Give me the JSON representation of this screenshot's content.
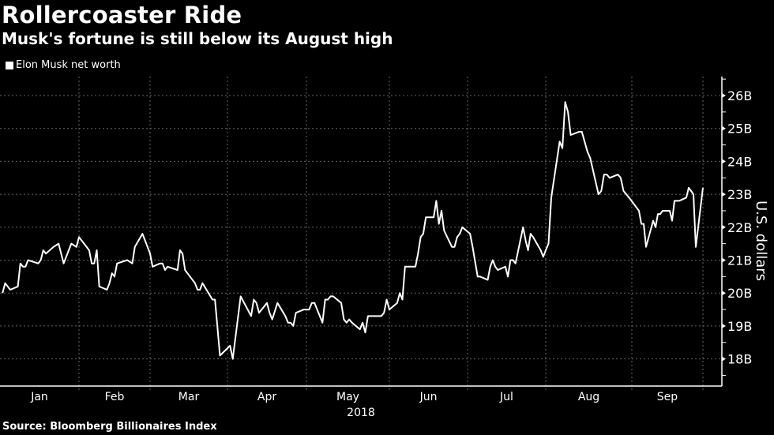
{
  "title": "Rollercoaster Ride",
  "subtitle": "Musk's fortune is still below its August high",
  "source": "Source: Bloomberg Billionaires Index",
  "chart_data": {
    "type": "line",
    "title": "Rollercoaster Ride",
    "subtitle": "Musk's fortune is still below its August high",
    "legend": {
      "position": "top-left",
      "entries": [
        "Elon Musk net worth"
      ]
    },
    "xlabel": "2018",
    "ylabel": "U.S. dollars",
    "y_axis_side": "right",
    "ylim": [
      17.2,
      26.6
    ],
    "y_ticks": [
      18,
      19,
      20,
      21,
      22,
      23,
      24,
      25,
      26
    ],
    "y_tick_labels": [
      "18B",
      "19B",
      "20B",
      "21B",
      "22B",
      "23B",
      "24B",
      "25B",
      "26B"
    ],
    "x_tick_labels": [
      "Jan",
      "Feb",
      "Mar",
      "Apr",
      "May",
      "Jun",
      "Jul",
      "Aug",
      "Sep"
    ],
    "grid": true,
    "colors": {
      "background": "#000000",
      "line": "#ffffff",
      "grid": "#666666"
    },
    "series": [
      {
        "name": "Elon Musk net worth",
        "unit": "billion USD",
        "points": [
          [
            "2018-01-02",
            20.0
          ],
          [
            "2018-01-03",
            20.3
          ],
          [
            "2018-01-05",
            20.1
          ],
          [
            "2018-01-08",
            20.2
          ],
          [
            "2018-01-09",
            20.9
          ],
          [
            "2018-01-10",
            20.8
          ],
          [
            "2018-01-11",
            20.8
          ],
          [
            "2018-01-12",
            21.0
          ],
          [
            "2018-01-16",
            20.9
          ],
          [
            "2018-01-17",
            21.0
          ],
          [
            "2018-01-18",
            21.3
          ],
          [
            "2018-01-19",
            21.2
          ],
          [
            "2018-01-22",
            21.4
          ],
          [
            "2018-01-24",
            21.5
          ],
          [
            "2018-01-26",
            20.9
          ],
          [
            "2018-01-29",
            21.5
          ],
          [
            "2018-01-31",
            21.4
          ],
          [
            "2018-02-01",
            21.7
          ],
          [
            "2018-02-05",
            21.3
          ],
          [
            "2018-02-06",
            20.9
          ],
          [
            "2018-02-07",
            20.9
          ],
          [
            "2018-02-08",
            21.3
          ],
          [
            "2018-02-09",
            20.2
          ],
          [
            "2018-02-12",
            20.1
          ],
          [
            "2018-02-13",
            20.3
          ],
          [
            "2018-02-14",
            20.6
          ],
          [
            "2018-02-15",
            20.5
          ],
          [
            "2018-02-16",
            20.9
          ],
          [
            "2018-02-20",
            21.0
          ],
          [
            "2018-02-22",
            20.9
          ],
          [
            "2018-02-23",
            21.4
          ],
          [
            "2018-02-26",
            21.8
          ],
          [
            "2018-03-01",
            21.2
          ],
          [
            "2018-03-02",
            20.8
          ],
          [
            "2018-03-05",
            20.9
          ],
          [
            "2018-03-06",
            20.9
          ],
          [
            "2018-03-07",
            20.7
          ],
          [
            "2018-03-08",
            20.8
          ],
          [
            "2018-03-12",
            20.7
          ],
          [
            "2018-03-13",
            21.3
          ],
          [
            "2018-03-14",
            21.2
          ],
          [
            "2018-03-15",
            20.7
          ],
          [
            "2018-03-16",
            20.6
          ],
          [
            "2018-03-19",
            20.3
          ],
          [
            "2018-03-20",
            20.1
          ],
          [
            "2018-03-21",
            20.1
          ],
          [
            "2018-03-22",
            20.3
          ],
          [
            "2018-03-26",
            19.8
          ],
          [
            "2018-03-27",
            19.8
          ],
          [
            "2018-03-29",
            18.1
          ],
          [
            "2018-04-02",
            18.4
          ],
          [
            "2018-04-03",
            18.0
          ],
          [
            "2018-04-06",
            19.9
          ],
          [
            "2018-04-10",
            19.3
          ],
          [
            "2018-04-11",
            19.8
          ],
          [
            "2018-04-12",
            19.7
          ],
          [
            "2018-04-13",
            19.4
          ],
          [
            "2018-04-16",
            19.7
          ],
          [
            "2018-04-17",
            19.4
          ],
          [
            "2018-04-18",
            19.2
          ],
          [
            "2018-04-20",
            19.7
          ],
          [
            "2018-04-23",
            19.3
          ],
          [
            "2018-04-24",
            19.1
          ],
          [
            "2018-04-25",
            19.1
          ],
          [
            "2018-04-26",
            19.0
          ],
          [
            "2018-04-27",
            19.4
          ],
          [
            "2018-04-30",
            19.5
          ],
          [
            "2018-05-02",
            19.5
          ],
          [
            "2018-05-03",
            19.7
          ],
          [
            "2018-05-04",
            19.7
          ],
          [
            "2018-05-07",
            19.1
          ],
          [
            "2018-05-08",
            19.8
          ],
          [
            "2018-05-09",
            19.8
          ],
          [
            "2018-05-10",
            19.9
          ],
          [
            "2018-05-11",
            19.9
          ],
          [
            "2018-05-14",
            19.7
          ],
          [
            "2018-05-15",
            19.2
          ],
          [
            "2018-05-16",
            19.1
          ],
          [
            "2018-05-17",
            19.2
          ],
          [
            "2018-05-18",
            19.1
          ],
          [
            "2018-05-21",
            18.9
          ],
          [
            "2018-05-22",
            19.1
          ],
          [
            "2018-05-23",
            18.8
          ],
          [
            "2018-05-24",
            19.3
          ],
          [
            "2018-05-25",
            19.3
          ],
          [
            "2018-05-29",
            19.3
          ],
          [
            "2018-05-30",
            19.4
          ],
          [
            "2018-05-31",
            19.8
          ],
          [
            "2018-06-01",
            19.5
          ],
          [
            "2018-06-04",
            19.7
          ],
          [
            "2018-06-05",
            20.0
          ],
          [
            "2018-06-06",
            19.8
          ],
          [
            "2018-06-07",
            20.8
          ],
          [
            "2018-06-08",
            20.8
          ],
          [
            "2018-06-11",
            20.8
          ],
          [
            "2018-06-12",
            21.2
          ],
          [
            "2018-06-13",
            21.7
          ],
          [
            "2018-06-14",
            21.8
          ],
          [
            "2018-06-15",
            22.3
          ],
          [
            "2018-06-18",
            22.3
          ],
          [
            "2018-06-19",
            22.8
          ],
          [
            "2018-06-20",
            22.1
          ],
          [
            "2018-06-21",
            22.5
          ],
          [
            "2018-06-22",
            21.9
          ],
          [
            "2018-06-25",
            21.4
          ],
          [
            "2018-06-26",
            21.4
          ],
          [
            "2018-06-27",
            21.7
          ],
          [
            "2018-06-28",
            21.8
          ],
          [
            "2018-06-29",
            22.0
          ],
          [
            "2018-07-02",
            21.8
          ],
          [
            "2018-07-03",
            21.4
          ],
          [
            "2018-07-05",
            20.5
          ],
          [
            "2018-07-06",
            20.5
          ],
          [
            "2018-07-09",
            20.4
          ],
          [
            "2018-07-10",
            20.8
          ],
          [
            "2018-07-11",
            21.0
          ],
          [
            "2018-07-12",
            20.8
          ],
          [
            "2018-07-13",
            20.7
          ],
          [
            "2018-07-16",
            20.8
          ],
          [
            "2018-07-17",
            20.5
          ],
          [
            "2018-07-18",
            21.0
          ],
          [
            "2018-07-19",
            21.0
          ],
          [
            "2018-07-20",
            20.9
          ],
          [
            "2018-07-23",
            22.0
          ],
          [
            "2018-07-24",
            21.6
          ],
          [
            "2018-07-25",
            21.3
          ],
          [
            "2018-07-26",
            21.8
          ],
          [
            "2018-07-27",
            21.7
          ],
          [
            "2018-07-30",
            21.3
          ],
          [
            "2018-07-31",
            21.1
          ],
          [
            "2018-08-01",
            21.3
          ],
          [
            "2018-08-02",
            21.5
          ],
          [
            "2018-08-03",
            22.9
          ],
          [
            "2018-08-06",
            24.6
          ],
          [
            "2018-08-07",
            24.4
          ],
          [
            "2018-08-08",
            25.8
          ],
          [
            "2018-08-09",
            25.5
          ],
          [
            "2018-08-10",
            24.8
          ],
          [
            "2018-08-13",
            24.9
          ],
          [
            "2018-08-14",
            24.9
          ],
          [
            "2018-08-15",
            24.6
          ],
          [
            "2018-08-16",
            24.3
          ],
          [
            "2018-08-17",
            24.1
          ],
          [
            "2018-08-20",
            23.0
          ],
          [
            "2018-08-21",
            23.1
          ],
          [
            "2018-08-22",
            23.6
          ],
          [
            "2018-08-23",
            23.6
          ],
          [
            "2018-08-24",
            23.5
          ],
          [
            "2018-08-27",
            23.6
          ],
          [
            "2018-08-28",
            23.5
          ],
          [
            "2018-08-29",
            23.1
          ],
          [
            "2018-08-30",
            23.0
          ],
          [
            "2018-08-31",
            22.9
          ],
          [
            "2018-09-04",
            22.5
          ],
          [
            "2018-09-05",
            22.1
          ],
          [
            "2018-09-06",
            22.1
          ],
          [
            "2018-09-07",
            21.4
          ],
          [
            "2018-09-10",
            22.2
          ],
          [
            "2018-09-11",
            22.0
          ],
          [
            "2018-09-12",
            22.4
          ],
          [
            "2018-09-13",
            22.4
          ],
          [
            "2018-09-14",
            22.5
          ],
          [
            "2018-09-17",
            22.5
          ],
          [
            "2018-09-18",
            22.2
          ],
          [
            "2018-09-19",
            22.8
          ],
          [
            "2018-09-20",
            22.8
          ],
          [
            "2018-09-21",
            22.8
          ],
          [
            "2018-09-24",
            22.9
          ],
          [
            "2018-09-25",
            23.2
          ],
          [
            "2018-09-26",
            23.1
          ],
          [
            "2018-09-27",
            23.0
          ],
          [
            "2018-09-28",
            21.4
          ],
          [
            "2018-10-01",
            23.2
          ]
        ]
      }
    ]
  }
}
